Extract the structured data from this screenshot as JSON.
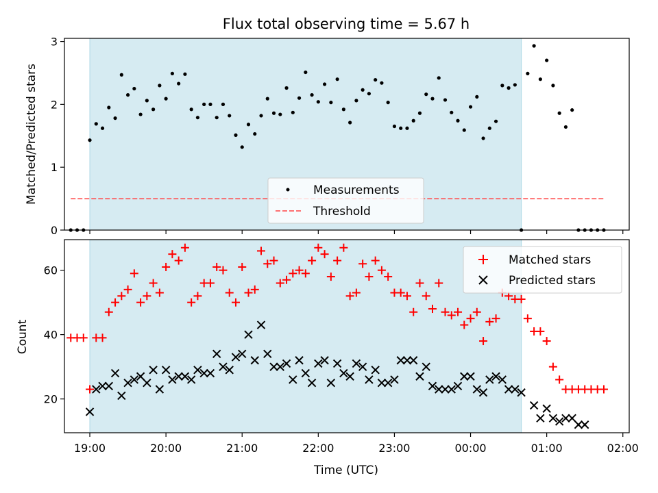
{
  "chart_data": {
    "title": "Flux total observing time = 5.67 h",
    "xlabel": "Time (UTC)",
    "x_ticks": [
      "19:00",
      "20:00",
      "21:00",
      "22:00",
      "23:00",
      "00:00",
      "01:00",
      "02:00"
    ],
    "x_range": [
      "18:40",
      "02:05"
    ],
    "observing_window": [
      "19:00",
      "00:40"
    ],
    "colors": {
      "window": "#add8e6",
      "measurements": "#000000",
      "threshold": "#ff4d4d",
      "matched": "#ff0000",
      "predicted": "#000000"
    },
    "panels": [
      {
        "type": "scatter",
        "ylabel": "Matched/Predicted stars",
        "ylim": [
          0,
          3.05
        ],
        "yticks": [
          "0",
          "1",
          "2",
          "3"
        ],
        "legend_position": "lower-center",
        "series": [
          {
            "name": "Measurements",
            "marker": "dot",
            "x": [
              "18:45",
              "18:50",
              "18:55",
              "19:00",
              "19:05",
              "19:10",
              "19:15",
              "19:20",
              "19:25",
              "19:30",
              "19:35",
              "19:40",
              "19:45",
              "19:50",
              "19:55",
              "20:00",
              "20:05",
              "20:10",
              "20:15",
              "20:20",
              "20:25",
              "20:30",
              "20:35",
              "20:40",
              "20:45",
              "20:50",
              "20:55",
              "21:00",
              "21:05",
              "21:10",
              "21:15",
              "21:20",
              "21:25",
              "21:30",
              "21:35",
              "21:40",
              "21:45",
              "21:50",
              "21:55",
              "22:00",
              "22:05",
              "22:10",
              "22:15",
              "22:20",
              "22:25",
              "22:30",
              "22:35",
              "22:40",
              "22:45",
              "22:50",
              "22:55",
              "23:00",
              "23:05",
              "23:10",
              "23:15",
              "23:20",
              "23:25",
              "23:30",
              "23:35",
              "23:40",
              "23:45",
              "23:50",
              "23:55",
              "00:00",
              "00:05",
              "00:10",
              "00:15",
              "00:20",
              "00:25",
              "00:30",
              "00:35",
              "00:40",
              "00:45",
              "00:50",
              "00:55",
              "01:00",
              "01:05",
              "01:10",
              "01:15",
              "01:20",
              "01:25",
              "01:30",
              "01:35",
              "01:40",
              "01:45"
            ],
            "y": [
              0,
              0,
              0,
              1.43,
              1.69,
              1.62,
              1.95,
              1.78,
              2.47,
              2.15,
              2.25,
              1.84,
              2.06,
              1.92,
              2.3,
              2.09,
              2.49,
              2.33,
              2.48,
              1.92,
              1.79,
              2.0,
              2.0,
              1.79,
              2.0,
              1.82,
              1.51,
              1.32,
              1.68,
              1.53,
              1.82,
              2.09,
              1.86,
              1.84,
              2.26,
              1.87,
              2.1,
              2.51,
              2.15,
              2.04,
              2.32,
              2.03,
              2.4,
              1.92,
              1.71,
              2.06,
              2.23,
              2.17,
              2.39,
              2.34,
              2.03,
              1.65,
              1.62,
              1.62,
              1.74,
              1.86,
              2.16,
              2.09,
              2.42,
              2.07,
              1.87,
              1.74,
              1.59,
              1.96,
              2.12,
              1.46,
              1.62,
              1.73,
              2.3,
              2.26,
              2.31,
              0,
              2.49,
              2.93,
              2.4,
              2.7,
              2.3,
              1.86,
              1.64,
              1.91,
              0,
              0,
              0,
              0,
              0
            ]
          },
          {
            "name": "Threshold",
            "marker": "dashed-line",
            "x": [
              "18:45",
              "01:45"
            ],
            "y": [
              0.5,
              0.5
            ]
          }
        ]
      },
      {
        "type": "scatter",
        "ylabel": "Count",
        "ylim": [
          9.5,
          69.5
        ],
        "yticks": [
          "20",
          "40",
          "60"
        ],
        "legend_position": "upper-right",
        "series": [
          {
            "name": "Matched stars",
            "marker": "plus",
            "x": [
              "18:45",
              "18:50",
              "18:55",
              "19:00",
              "19:05",
              "19:10",
              "19:15",
              "19:20",
              "19:25",
              "19:30",
              "19:35",
              "19:40",
              "19:45",
              "19:50",
              "19:55",
              "20:00",
              "20:05",
              "20:10",
              "20:15",
              "20:20",
              "20:25",
              "20:30",
              "20:35",
              "20:40",
              "20:45",
              "20:50",
              "20:55",
              "21:00",
              "21:05",
              "21:10",
              "21:15",
              "21:20",
              "21:25",
              "21:30",
              "21:35",
              "21:40",
              "21:45",
              "21:50",
              "21:55",
              "22:00",
              "22:05",
              "22:10",
              "22:15",
              "22:20",
              "22:25",
              "22:30",
              "22:35",
              "22:40",
              "22:45",
              "22:50",
              "22:55",
              "23:00",
              "23:05",
              "23:10",
              "23:15",
              "23:20",
              "23:25",
              "23:30",
              "23:35",
              "23:40",
              "23:45",
              "23:50",
              "23:55",
              "00:00",
              "00:05",
              "00:10",
              "00:15",
              "00:20",
              "00:25",
              "00:30",
              "00:35",
              "00:40",
              "00:45",
              "00:50",
              "00:55",
              "01:00",
              "01:05",
              "01:10",
              "01:15",
              "01:20",
              "01:25",
              "01:30",
              "01:35",
              "01:40",
              "01:45"
            ],
            "y": [
              39,
              39,
              39,
              23,
              39,
              39,
              47,
              50,
              52,
              54,
              59,
              50,
              52,
              56,
              53,
              61,
              65,
              63,
              67,
              50,
              52,
              56,
              56,
              61,
              60,
              53,
              50,
              61,
              53,
              54,
              66,
              62,
              63,
              56,
              57,
              59,
              60,
              59,
              63,
              67,
              65,
              58,
              63,
              67,
              52,
              53,
              62,
              58,
              63,
              60,
              58,
              53,
              53,
              52,
              47,
              56,
              52,
              48,
              56,
              47,
              46,
              47,
              43,
              45,
              47,
              38,
              44,
              45,
              53,
              52,
              51,
              51,
              45,
              41,
              41,
              38,
              30,
              26,
              23,
              23,
              23,
              23,
              23,
              23,
              23
            ]
          },
          {
            "name": "Predicted stars",
            "marker": "x",
            "x": [
              "19:00",
              "19:05",
              "19:10",
              "19:15",
              "19:20",
              "19:25",
              "19:30",
              "19:35",
              "19:40",
              "19:45",
              "19:50",
              "19:55",
              "20:00",
              "20:05",
              "20:10",
              "20:15",
              "20:20",
              "20:25",
              "20:30",
              "20:35",
              "20:40",
              "20:45",
              "20:50",
              "20:55",
              "21:00",
              "21:05",
              "21:10",
              "21:15",
              "21:20",
              "21:25",
              "21:30",
              "21:35",
              "21:40",
              "21:45",
              "21:50",
              "21:55",
              "22:00",
              "22:05",
              "22:10",
              "22:15",
              "22:20",
              "22:25",
              "22:30",
              "22:35",
              "22:40",
              "22:45",
              "22:50",
              "22:55",
              "23:00",
              "23:05",
              "23:10",
              "23:15",
              "23:20",
              "23:25",
              "23:30",
              "23:35",
              "23:40",
              "23:45",
              "23:50",
              "23:55",
              "00:00",
              "00:05",
              "00:10",
              "00:15",
              "00:20",
              "00:25",
              "00:30",
              "00:35",
              "00:40",
              "00:50",
              "00:55",
              "01:00",
              "01:05",
              "01:10",
              "01:15",
              "01:20",
              "01:25",
              "01:30"
            ],
            "y": [
              16,
              23,
              24,
              24,
              28,
              21,
              25,
              26,
              27,
              25,
              29,
              23,
              29,
              26,
              27,
              27,
              26,
              29,
              28,
              28,
              34,
              30,
              29,
              33,
              34,
              40,
              32,
              43,
              34,
              30,
              30,
              31,
              26,
              32,
              28,
              25,
              31,
              32,
              25,
              31,
              28,
              27,
              31,
              30,
              26,
              29,
              25,
              25,
              26,
              32,
              32,
              32,
              27,
              30,
              24,
              23,
              23,
              23,
              24,
              27,
              27,
              23,
              22,
              26,
              27,
              26,
              23,
              23,
              22,
              18,
              14,
              17,
              14,
              13,
              14,
              14,
              12,
              12
            ]
          }
        ]
      }
    ]
  }
}
